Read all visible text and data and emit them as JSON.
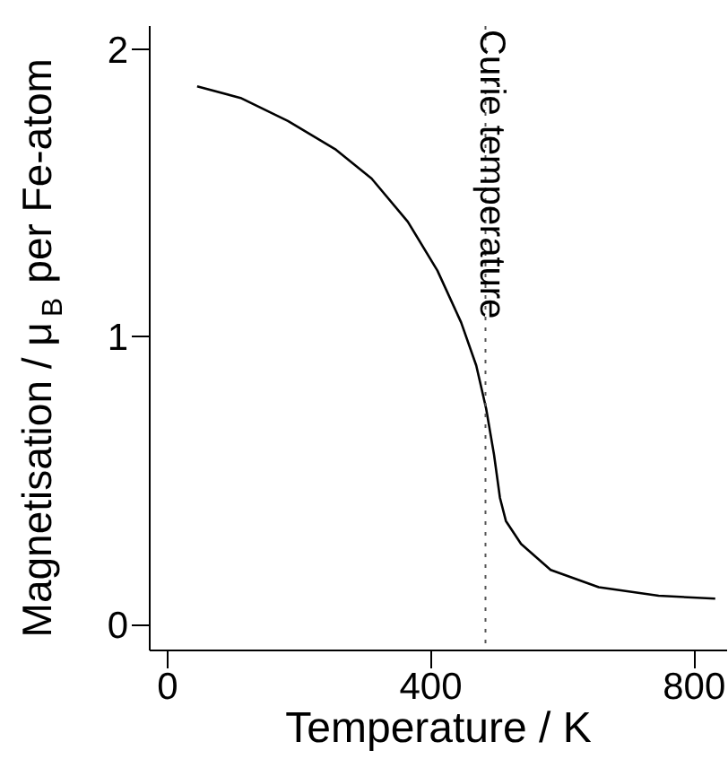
{
  "chart_data": {
    "type": "line",
    "xlabel": "Temperature / K",
    "ylabel": "Magnetisation / μ$_{B}$ per  Fe-atom",
    "x": [
      45,
      111,
      183,
      256,
      310,
      365,
      410,
      446,
      469,
      484,
      496,
      505,
      514,
      537,
      582,
      655,
      746,
      832
    ],
    "series": [
      {
        "color": "#000000",
        "values": [
          1.87,
          1.83,
          1.75,
          1.65,
          1.55,
          1.4,
          1.23,
          1.05,
          0.9,
          0.75,
          0.59,
          0.44,
          0.36,
          0.28,
          0.19,
          0.13,
          0.1,
          0.09
        ]
      }
    ],
    "xlim": [
      -27,
      850
    ],
    "ylim": [
      -0.09,
      2.08
    ],
    "xticks": [
      0,
      400,
      800
    ],
    "yticks": [
      0,
      1,
      2
    ],
    "ref_lines": [
      {
        "axis": "x",
        "value": 483,
        "label": "Curie temperature",
        "color": "#555555",
        "line_style": "dotted"
      }
    ],
    "grid": false,
    "marker": "none",
    "line_style": "solid"
  }
}
